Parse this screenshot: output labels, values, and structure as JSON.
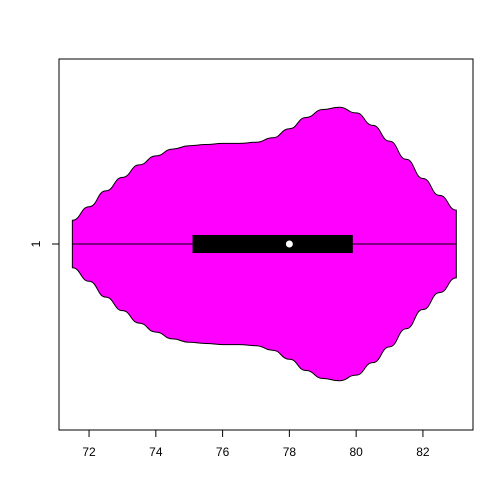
{
  "chart_data": {
    "type": "violin",
    "orientation": "horizontal",
    "title": "",
    "xlabel": "",
    "ylabel": "",
    "xlim": [
      71.1,
      83.5
    ],
    "x_ticks": [
      72,
      74,
      76,
      78,
      80,
      82
    ],
    "x_tick_labels": [
      "72",
      "74",
      "76",
      "78",
      "80",
      "82"
    ],
    "y_tick_labels": [
      "1"
    ],
    "fill_color": "#ff00ff",
    "box_color": "#000000",
    "median_color": "#ffffff",
    "grid": false,
    "series": [
      {
        "min": 71.5,
        "q1": 75.1,
        "median": 78.0,
        "q3": 79.9,
        "max": 83.0,
        "density": [
          [
            71.5,
            0.21
          ],
          [
            72.0,
            0.33
          ],
          [
            72.5,
            0.47
          ],
          [
            73.0,
            0.59
          ],
          [
            73.5,
            0.7
          ],
          [
            74.0,
            0.78
          ],
          [
            74.5,
            0.84
          ],
          [
            75.0,
            0.87
          ],
          [
            75.5,
            0.88
          ],
          [
            76.0,
            0.89
          ],
          [
            76.5,
            0.89
          ],
          [
            77.0,
            0.9
          ],
          [
            77.5,
            0.94
          ],
          [
            78.0,
            1.02
          ],
          [
            78.5,
            1.12
          ],
          [
            79.0,
            1.19
          ],
          [
            79.5,
            1.21
          ],
          [
            80.0,
            1.16
          ],
          [
            80.5,
            1.05
          ],
          [
            81.0,
            0.91
          ],
          [
            81.5,
            0.75
          ],
          [
            82.0,
            0.58
          ],
          [
            82.5,
            0.43
          ],
          [
            83.0,
            0.3
          ]
        ]
      }
    ]
  }
}
